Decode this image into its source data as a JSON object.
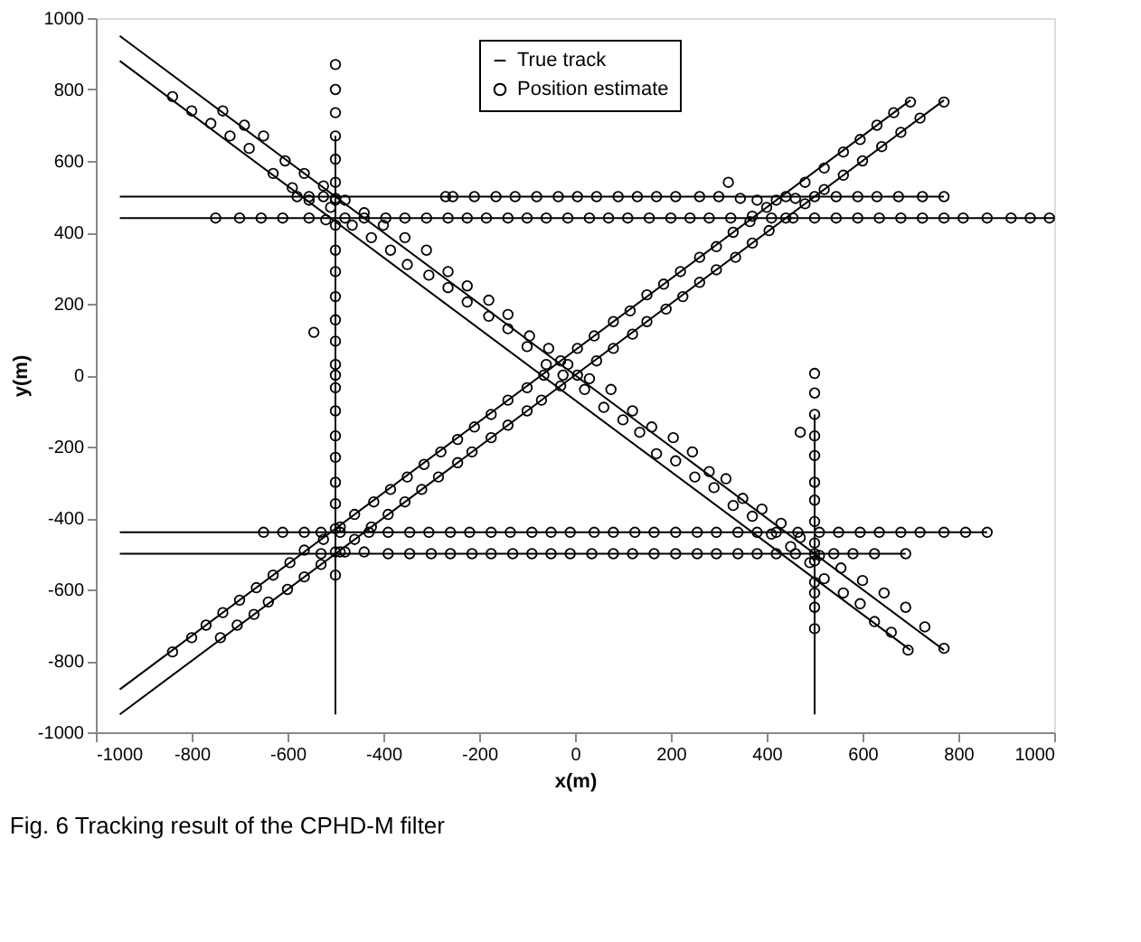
{
  "chart_data": {
    "type": "scatter",
    "xlabel": "x(m)",
    "ylabel": "y(m)",
    "annotations": [
      "Fig. 6 Tracking result of the CPHD-M filter"
    ],
    "xlim": [
      -1000,
      1000
    ],
    "ylim": [
      -1000,
      1000
    ],
    "xticks": [
      -1000,
      -800,
      -600,
      -400,
      -200,
      0,
      200,
      400,
      600,
      800,
      1000
    ],
    "yticks": [
      -1000,
      -800,
      -600,
      -400,
      -200,
      0,
      200,
      400,
      600,
      800,
      1000
    ],
    "grid": false,
    "legend": "top",
    "series": [
      {
        "name": "True track",
        "type": "line",
        "color": "#000000",
        "line_style": "solid",
        "marker": "none",
        "x": [
          -950,
          770
        ],
        "values": [
          950,
          -770
        ]
      },
      {
        "type": "line",
        "color": "#000000",
        "line_style": "solid",
        "marker": "none",
        "x": [
          -950,
          700
        ],
        "values": [
          880,
          -770
        ]
      },
      {
        "type": "line",
        "color": "#000000",
        "line_style": "solid",
        "marker": "none",
        "x": [
          -950,
          700
        ],
        "values": [
          -880,
          770
        ]
      },
      {
        "type": "line",
        "color": "#000000",
        "line_style": "solid",
        "marker": "none",
        "x": [
          -950,
          770
        ],
        "values": [
          -950,
          770
        ]
      },
      {
        "type": "line",
        "color": "#000000",
        "line_style": "solid",
        "marker": "none",
        "x": [
          -950,
          770
        ],
        "values": [
          500,
          500
        ]
      },
      {
        "type": "line",
        "color": "#000000",
        "line_style": "solid",
        "marker": "none",
        "x": [
          -950,
          1000
        ],
        "values": [
          440,
          440
        ]
      },
      {
        "type": "line",
        "color": "#000000",
        "line_style": "solid",
        "marker": "none",
        "x": [
          -950,
          860
        ],
        "values": [
          -440,
          -440
        ]
      },
      {
        "type": "line",
        "color": "#000000",
        "line_style": "solid",
        "marker": "none",
        "x": [
          -950,
          690
        ],
        "values": [
          -500,
          -500
        ]
      },
      {
        "type": "line",
        "color": "#000000",
        "line_style": "solid",
        "marker": "none",
        "x": [
          -500,
          -500
        ],
        "values": [
          -950,
          670
        ]
      },
      {
        "type": "line",
        "color": "#000000",
        "line_style": "solid",
        "marker": "none",
        "x": [
          500,
          500
        ],
        "values": [
          -950,
          -110
        ]
      },
      {
        "name": "Position estimate",
        "type": "scatter",
        "color": "#000000",
        "marker": "circle",
        "x": [
          -735,
          -690,
          -650,
          -605,
          -565,
          -525,
          -480,
          -440,
          -400,
          -355,
          -310,
          -265,
          -225,
          -180,
          -140,
          -95,
          -55,
          -15,
          30,
          75,
          120,
          160,
          205,
          245,
          280,
          315,
          350,
          390,
          430,
          470,
          510,
          555,
          600,
          645,
          690,
          730,
          770,
          -840,
          -800,
          -760,
          -720,
          -680,
          -630,
          -590,
          -555,
          -510,
          -465,
          -425,
          -385,
          -350,
          -305,
          -265,
          -225,
          -180,
          -140,
          -100,
          -60,
          -25,
          20,
          60,
          100,
          135,
          170,
          210,
          250,
          290,
          330,
          370,
          410,
          450,
          490,
          520,
          560,
          595,
          625,
          660,
          695,
          -545,
          320,
          470,
          -840,
          -800,
          -770,
          -735,
          -700,
          -665,
          -630,
          -595,
          -565,
          -525,
          -490,
          -460,
          -420,
          -385,
          -350,
          -315,
          -280,
          -245,
          -210,
          -175,
          -140,
          -100,
          -65,
          -30,
          5,
          40,
          80,
          115,
          150,
          185,
          220,
          260,
          295,
          330,
          365,
          400,
          440,
          480,
          520,
          560,
          595,
          630,
          665,
          700,
          -740,
          -705,
          -670,
          -640,
          -600,
          -565,
          -530,
          -490,
          -460,
          -425,
          -390,
          -355,
          -320,
          -285,
          -245,
          -215,
          -175,
          -140,
          -100,
          -70,
          -30,
          5,
          45,
          80,
          120,
          150,
          190,
          225,
          260,
          295,
          335,
          370,
          405,
          440,
          480,
          520,
          560,
          600,
          640,
          680,
          720,
          770,
          -580,
          -555,
          -525,
          -500,
          -270,
          -255,
          -210,
          -165,
          -125,
          -80,
          -35,
          5,
          45,
          90,
          130,
          170,
          210,
          260,
          300,
          345,
          380,
          420,
          460,
          500,
          545,
          590,
          630,
          675,
          725,
          770,
          -750,
          -700,
          -655,
          -610,
          -555,
          -520,
          -480,
          -440,
          -395,
          -355,
          -310,
          -265,
          -225,
          -185,
          -140,
          -100,
          -60,
          -15,
          30,
          70,
          110,
          155,
          200,
          240,
          280,
          325,
          370,
          410,
          455,
          500,
          545,
          590,
          635,
          680,
          725,
          770,
          810,
          860,
          910,
          950,
          990,
          -650,
          -610,
          -565,
          -530,
          -490,
          -430,
          -390,
          -345,
          -305,
          -260,
          -220,
          -175,
          -135,
          -90,
          -50,
          -10,
          40,
          80,
          125,
          165,
          210,
          255,
          295,
          340,
          380,
          420,
          465,
          510,
          550,
          595,
          635,
          680,
          720,
          770,
          815,
          860,
          -530,
          -480,
          -440,
          -390,
          -345,
          -300,
          -260,
          -215,
          -175,
          -130,
          -90,
          -50,
          -10,
          35,
          80,
          120,
          165,
          210,
          255,
          295,
          340,
          380,
          420,
          460,
          500,
          540,
          580,
          625,
          690,
          -500,
          -500,
          -500,
          -500,
          -500,
          -500,
          -500,
          -500,
          -500,
          -500,
          -500,
          -500,
          -500,
          -500,
          -500,
          -500,
          -500,
          -500,
          -500,
          -500,
          -500,
          -500,
          -500,
          -500,
          500,
          500,
          500,
          500,
          500,
          500,
          500,
          500,
          500,
          500,
          500,
          500,
          500,
          500
        ],
        "values": [
          740,
          700,
          670,
          600,
          565,
          530,
          490,
          455,
          420,
          385,
          350,
          290,
          250,
          210,
          170,
          110,
          75,
          30,
          -10,
          -40,
          -100,
          -145,
          -175,
          -215,
          -270,
          -290,
          -345,
          -375,
          -415,
          -455,
          -505,
          -540,
          -575,
          -610,
          -650,
          -705,
          -765,
          780,
          740,
          705,
          670,
          635,
          565,
          525,
          490,
          470,
          420,
          385,
          350,
          310,
          280,
          245,
          205,
          165,
          130,
          80,
          30,
          0,
          -40,
          -90,
          -125,
          -160,
          -220,
          -240,
          -285,
          -315,
          -365,
          -395,
          -445,
          -480,
          -525,
          -570,
          -610,
          -640,
          -690,
          -720,
          -770,
          120,
          540,
          -160,
          -775,
          -735,
          -700,
          -665,
          -630,
          -595,
          -560,
          -525,
          -490,
          -460,
          -425,
          -390,
          -355,
          -320,
          -285,
          -250,
          -215,
          -180,
          -145,
          -110,
          -70,
          -35,
          0,
          40,
          75,
          110,
          150,
          180,
          225,
          255,
          290,
          330,
          360,
          400,
          430,
          470,
          500,
          540,
          580,
          625,
          660,
          700,
          735,
          765,
          -735,
          -700,
          -670,
          -635,
          -600,
          -565,
          -530,
          -495,
          -460,
          -425,
          -390,
          -355,
          -320,
          -285,
          -245,
          -215,
          -175,
          -140,
          -100,
          -70,
          -30,
          0,
          40,
          75,
          115,
          150,
          185,
          220,
          260,
          295,
          330,
          370,
          405,
          440,
          480,
          520,
          560,
          600,
          640,
          680,
          720,
          765,
          500,
          500,
          500,
          495,
          500,
          500,
          500,
          500,
          500,
          500,
          500,
          500,
          500,
          500,
          500,
          500,
          500,
          500,
          500,
          495,
          490,
          490,
          495,
          500,
          500,
          500,
          500,
          500,
          500,
          500,
          440,
          440,
          440,
          440,
          440,
          435,
          440,
          440,
          440,
          440,
          440,
          440,
          440,
          440,
          440,
          440,
          440,
          440,
          440,
          440,
          440,
          440,
          440,
          440,
          440,
          440,
          445,
          440,
          440,
          440,
          440,
          440,
          440,
          440,
          440,
          440,
          440,
          440,
          440,
          440,
          440,
          -440,
          -440,
          -440,
          -440,
          -440,
          -440,
          -440,
          -440,
          -440,
          -440,
          -440,
          -440,
          -440,
          -440,
          -440,
          -440,
          -440,
          -440,
          -440,
          -440,
          -440,
          -440,
          -440,
          -440,
          -440,
          -440,
          -440,
          -440,
          -440,
          -440,
          -440,
          -440,
          -440,
          -440,
          -440,
          -440,
          -500,
          -495,
          -495,
          -500,
          -500,
          -500,
          -500,
          -500,
          -500,
          -500,
          -500,
          -500,
          -500,
          -500,
          -500,
          -500,
          -500,
          -500,
          -500,
          -500,
          -500,
          -500,
          -500,
          -500,
          -500,
          -500,
          -500,
          -500,
          -500,
          870,
          800,
          735,
          670,
          605,
          540,
          490,
          420,
          350,
          290,
          220,
          155,
          95,
          30,
          0,
          -35,
          -100,
          -170,
          -230,
          -300,
          -360,
          -430,
          -495,
          -560,
          5,
          -50,
          -110,
          -170,
          -225,
          -300,
          -350,
          -410,
          -470,
          -520,
          -580,
          -610,
          -650,
          -710
        ]
      }
    ]
  }
}
